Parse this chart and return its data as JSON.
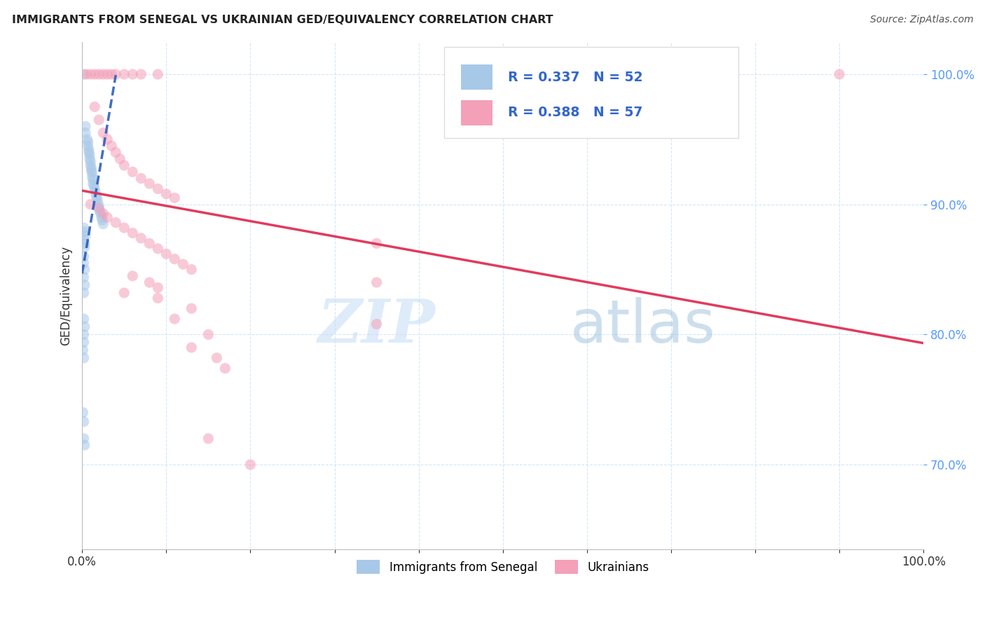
{
  "title": "IMMIGRANTS FROM SENEGAL VS UKRAINIAN GED/EQUIVALENCY CORRELATION CHART",
  "source": "Source: ZipAtlas.com",
  "ylabel": "GED/Equivalency",
  "legend_label1": "Immigrants from Senegal",
  "legend_label2": "Ukrainians",
  "r1": 0.337,
  "n1": 52,
  "r2": 0.388,
  "n2": 57,
  "blue_color": "#a8c8e8",
  "pink_color": "#f4a0b8",
  "blue_line_color": "#2255bb",
  "pink_line_color": "#e03055",
  "blue_scatter": [
    [
      0.002,
      1.0
    ],
    [
      0.004,
      0.96
    ],
    [
      0.004,
      0.955
    ],
    [
      0.006,
      0.95
    ],
    [
      0.007,
      0.948
    ],
    [
      0.007,
      0.945
    ],
    [
      0.008,
      0.942
    ],
    [
      0.008,
      0.94
    ],
    [
      0.009,
      0.938
    ],
    [
      0.009,
      0.935
    ],
    [
      0.01,
      0.933
    ],
    [
      0.01,
      0.93
    ],
    [
      0.011,
      0.928
    ],
    [
      0.011,
      0.926
    ],
    [
      0.012,
      0.924
    ],
    [
      0.012,
      0.921
    ],
    [
      0.013,
      0.919
    ],
    [
      0.013,
      0.916
    ],
    [
      0.014,
      0.914
    ],
    [
      0.015,
      0.912
    ],
    [
      0.016,
      0.909
    ],
    [
      0.017,
      0.906
    ],
    [
      0.018,
      0.904
    ],
    [
      0.019,
      0.901
    ],
    [
      0.02,
      0.898
    ],
    [
      0.021,
      0.895
    ],
    [
      0.022,
      0.893
    ],
    [
      0.023,
      0.89
    ],
    [
      0.024,
      0.888
    ],
    [
      0.025,
      0.885
    ],
    [
      0.002,
      0.882
    ],
    [
      0.003,
      0.879
    ],
    [
      0.004,
      0.876
    ],
    [
      0.002,
      0.873
    ],
    [
      0.003,
      0.87
    ],
    [
      0.003,
      0.867
    ],
    [
      0.002,
      0.86
    ],
    [
      0.002,
      0.855
    ],
    [
      0.003,
      0.85
    ],
    [
      0.002,
      0.844
    ],
    [
      0.003,
      0.838
    ],
    [
      0.002,
      0.832
    ],
    [
      0.002,
      0.812
    ],
    [
      0.003,
      0.806
    ],
    [
      0.002,
      0.8
    ],
    [
      0.002,
      0.794
    ],
    [
      0.001,
      0.788
    ],
    [
      0.002,
      0.782
    ],
    [
      0.001,
      0.74
    ],
    [
      0.002,
      0.733
    ],
    [
      0.002,
      0.72
    ],
    [
      0.003,
      0.715
    ]
  ],
  "pink_scatter": [
    [
      0.005,
      1.0
    ],
    [
      0.01,
      1.0
    ],
    [
      0.015,
      1.0
    ],
    [
      0.02,
      1.0
    ],
    [
      0.025,
      1.0
    ],
    [
      0.03,
      1.0
    ],
    [
      0.035,
      1.0
    ],
    [
      0.04,
      1.0
    ],
    [
      0.05,
      1.0
    ],
    [
      0.06,
      1.0
    ],
    [
      0.07,
      1.0
    ],
    [
      0.09,
      1.0
    ],
    [
      0.9,
      1.0
    ],
    [
      0.015,
      0.975
    ],
    [
      0.02,
      0.965
    ],
    [
      0.025,
      0.955
    ],
    [
      0.03,
      0.95
    ],
    [
      0.035,
      0.945
    ],
    [
      0.04,
      0.94
    ],
    [
      0.045,
      0.935
    ],
    [
      0.05,
      0.93
    ],
    [
      0.06,
      0.925
    ],
    [
      0.07,
      0.92
    ],
    [
      0.08,
      0.916
    ],
    [
      0.09,
      0.912
    ],
    [
      0.1,
      0.908
    ],
    [
      0.11,
      0.905
    ],
    [
      0.01,
      0.9
    ],
    [
      0.02,
      0.897
    ],
    [
      0.025,
      0.893
    ],
    [
      0.03,
      0.89
    ],
    [
      0.04,
      0.886
    ],
    [
      0.05,
      0.882
    ],
    [
      0.06,
      0.878
    ],
    [
      0.07,
      0.874
    ],
    [
      0.08,
      0.87
    ],
    [
      0.09,
      0.866
    ],
    [
      0.1,
      0.862
    ],
    [
      0.11,
      0.858
    ],
    [
      0.12,
      0.854
    ],
    [
      0.13,
      0.85
    ],
    [
      0.06,
      0.845
    ],
    [
      0.08,
      0.84
    ],
    [
      0.09,
      0.836
    ],
    [
      0.35,
      0.87
    ],
    [
      0.05,
      0.832
    ],
    [
      0.09,
      0.828
    ],
    [
      0.35,
      0.84
    ],
    [
      0.13,
      0.82
    ],
    [
      0.11,
      0.812
    ],
    [
      0.35,
      0.808
    ],
    [
      0.15,
      0.8
    ],
    [
      0.13,
      0.79
    ],
    [
      0.16,
      0.782
    ],
    [
      0.17,
      0.774
    ],
    [
      0.15,
      0.72
    ],
    [
      0.2,
      0.7
    ]
  ],
  "xlim": [
    0.0,
    1.0
  ],
  "ylim": [
    0.635,
    1.025
  ],
  "ytick_positions": [
    0.7,
    0.8,
    0.9,
    1.0
  ],
  "ytick_labels": [
    "70.0%",
    "80.0%",
    "90.0%",
    "100.0%"
  ],
  "xtick_positions": [
    0.0,
    0.1,
    0.2,
    0.3,
    0.4,
    0.5,
    0.6,
    0.7,
    0.8,
    0.9,
    1.0
  ],
  "marker_size": 120,
  "marker_alpha": 0.55,
  "watermark_zip": "ZIP",
  "watermark_atlas": "atlas",
  "background_color": "#ffffff",
  "grid_color": "#d0e4f4",
  "tick_color_right": "#5599ff"
}
